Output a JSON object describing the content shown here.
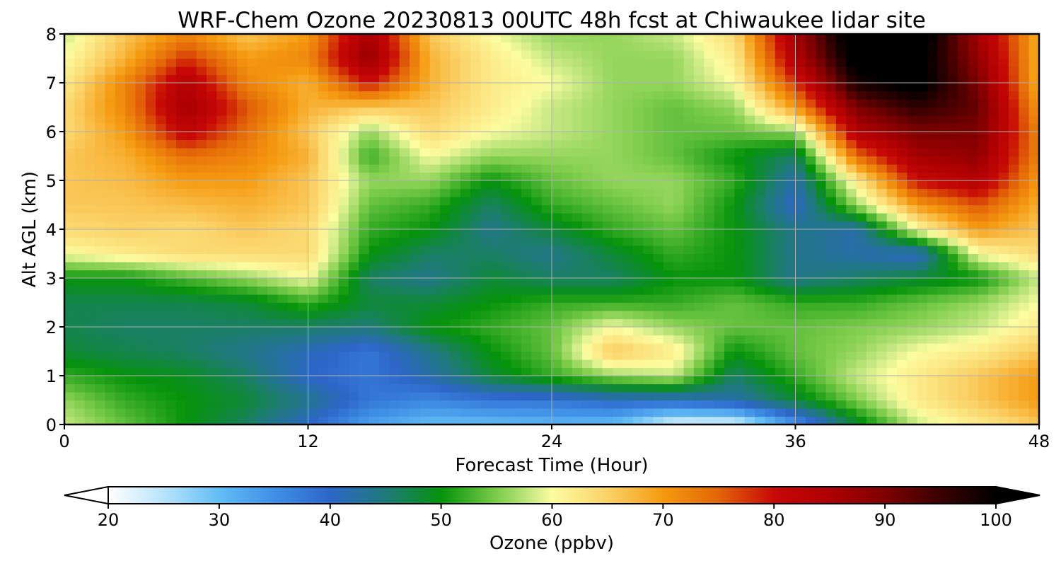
{
  "chart_data": {
    "type": "heatmap",
    "title": "WRF-Chem Ozone  20230813 00UTC 48h fcst at Chiwaukee lidar site",
    "xlabel": "Forecast Time (Hour)",
    "ylabel": "Alt AGL (km)",
    "xlim": [
      0,
      48
    ],
    "ylim": [
      0,
      8
    ],
    "x_ticks": [
      0,
      12,
      24,
      36,
      48
    ],
    "y_ticks": [
      0,
      1,
      2,
      3,
      4,
      5,
      6,
      7,
      8
    ],
    "grid": true,
    "x": [
      0,
      3,
      6,
      9,
      12,
      15,
      18,
      21,
      24,
      27,
      30,
      33,
      36,
      39,
      42,
      45,
      48
    ],
    "y": [
      0,
      0.5,
      1,
      1.5,
      2,
      2.5,
      3,
      3.5,
      4,
      4.5,
      5,
      5.5,
      6,
      6.5,
      7,
      7.5,
      8
    ],
    "z": [
      [
        58,
        54,
        50,
        46,
        40,
        33,
        30,
        30,
        31,
        30,
        22,
        22,
        34,
        48,
        58,
        62,
        66
      ],
      [
        56,
        52,
        50,
        48,
        44,
        38,
        36,
        38,
        38,
        40,
        40,
        42,
        48,
        55,
        62,
        66,
        70
      ],
      [
        52,
        50,
        49,
        46,
        40,
        38,
        42,
        48,
        52,
        56,
        58,
        46,
        52,
        58,
        62,
        66,
        70
      ],
      [
        48,
        47,
        46,
        44,
        41,
        38,
        44,
        50,
        54,
        66,
        62,
        50,
        54,
        56,
        60,
        62,
        66
      ],
      [
        47,
        46,
        46,
        46,
        46,
        45,
        50,
        52,
        54,
        60,
        56,
        54,
        54,
        55,
        56,
        58,
        62
      ],
      [
        47,
        47,
        47,
        48,
        52,
        48,
        48,
        50,
        52,
        52,
        52,
        54,
        52,
        52,
        54,
        56,
        60
      ],
      [
        50,
        50,
        53,
        56,
        60,
        46,
        44,
        48,
        46,
        46,
        50,
        50,
        44,
        46,
        48,
        50,
        58
      ],
      [
        60,
        62,
        64,
        64,
        64,
        50,
        46,
        46,
        44,
        48,
        52,
        50,
        44,
        42,
        40,
        60,
        64
      ],
      [
        64,
        65,
        64,
        66,
        64,
        52,
        50,
        44,
        48,
        52,
        54,
        50,
        44,
        42,
        60,
        70,
        66
      ],
      [
        66,
        66,
        67,
        68,
        66,
        54,
        52,
        46,
        52,
        54,
        56,
        50,
        40,
        56,
        70,
        76,
        68
      ],
      [
        66,
        67,
        70,
        70,
        66,
        56,
        56,
        50,
        54,
        56,
        56,
        52,
        42,
        62,
        80,
        84,
        70
      ],
      [
        66,
        68,
        74,
        72,
        68,
        52,
        60,
        56,
        56,
        56,
        54,
        50,
        46,
        74,
        86,
        88,
        72
      ],
      [
        64,
        70,
        82,
        74,
        66,
        56,
        64,
        60,
        58,
        56,
        54,
        54,
        56,
        84,
        90,
        90,
        72
      ],
      [
        64,
        72,
        86,
        76,
        68,
        66,
        66,
        62,
        58,
        56,
        54,
        56,
        70,
        90,
        96,
        92,
        70
      ],
      [
        62,
        72,
        84,
        72,
        68,
        80,
        68,
        62,
        60,
        56,
        56,
        60,
        78,
        98,
        102,
        90,
        68
      ],
      [
        60,
        68,
        78,
        70,
        72,
        88,
        68,
        62,
        58,
        56,
        56,
        62,
        84,
        102,
        102,
        88,
        68
      ],
      [
        58,
        66,
        72,
        66,
        70,
        86,
        66,
        60,
        56,
        56,
        58,
        64,
        86,
        104,
        104,
        86,
        68
      ]
    ],
    "colorbar": {
      "label": "Ozone  (ppbv)",
      "min": 20,
      "max": 100,
      "ticks": [
        20,
        30,
        40,
        50,
        60,
        70,
        80,
        90,
        100
      ],
      "extend": "both",
      "colors": [
        {
          "v": 20,
          "c": "#ffffff"
        },
        {
          "v": 25,
          "c": "#b8e4fb"
        },
        {
          "v": 30,
          "c": "#62bdf5"
        },
        {
          "v": 35,
          "c": "#3f8fe6"
        },
        {
          "v": 40,
          "c": "#2d66c8"
        },
        {
          "v": 45,
          "c": "#1f7a7a"
        },
        {
          "v": 50,
          "c": "#05930b"
        },
        {
          "v": 55,
          "c": "#7ccc4a"
        },
        {
          "v": 58,
          "c": "#c6e882"
        },
        {
          "v": 60,
          "c": "#fcfca0"
        },
        {
          "v": 65,
          "c": "#fbd268"
        },
        {
          "v": 70,
          "c": "#f59a10"
        },
        {
          "v": 75,
          "c": "#e36508"
        },
        {
          "v": 80,
          "c": "#c70806"
        },
        {
          "v": 85,
          "c": "#ae0002"
        },
        {
          "v": 90,
          "c": "#7e0000"
        },
        {
          "v": 95,
          "c": "#3a0000"
        },
        {
          "v": 100,
          "c": "#000000"
        }
      ]
    }
  }
}
